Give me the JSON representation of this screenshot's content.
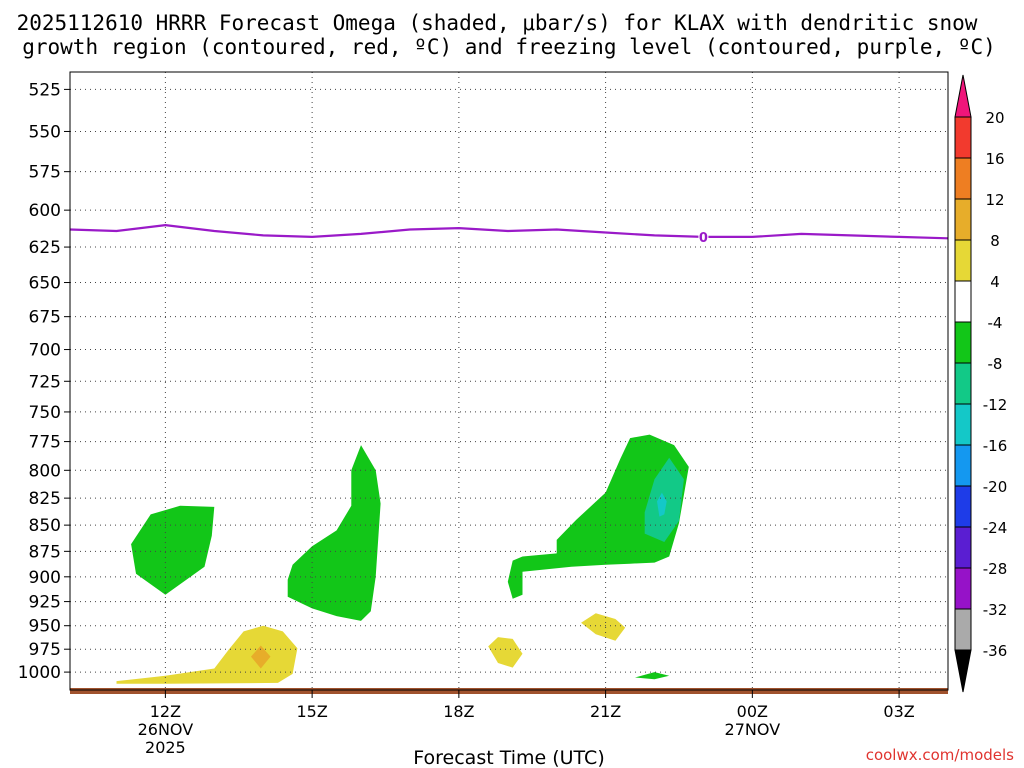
{
  "chart_data": {
    "type": "contour",
    "title_line1": "2025112610 HRRR Forecast Omega (shaded, μbar/s) for KLAX with dendritic snow",
    "title_line2": "growth region (contoured, red, ºC) and freezing level (contoured, purple, ºC)",
    "xlabel": "Forecast Time (UTC)",
    "ylabel": "",
    "credit": "coolwx.com/models",
    "x_hours_from_12Z": [
      -1.95,
      16.0
    ],
    "y_pressure_hpa": [
      515,
      1020
    ],
    "y_ticks": [
      525,
      550,
      575,
      600,
      625,
      650,
      675,
      700,
      725,
      750,
      775,
      800,
      825,
      850,
      875,
      900,
      925,
      950,
      975,
      1000
    ],
    "x_ticks": [
      {
        "hour": 0,
        "label": "12Z",
        "sub1": "26NOV",
        "sub2": "2025"
      },
      {
        "hour": 3,
        "label": "15Z",
        "sub1": "",
        "sub2": ""
      },
      {
        "hour": 6,
        "label": "18Z",
        "sub1": "",
        "sub2": ""
      },
      {
        "hour": 9,
        "label": "21Z",
        "sub1": "",
        "sub2": ""
      },
      {
        "hour": 12,
        "label": "00Z",
        "sub1": "27NOV",
        "sub2": ""
      },
      {
        "hour": 15,
        "label": "03Z",
        "sub1": "",
        "sub2": ""
      }
    ],
    "colorbar": {
      "labels": [
        "20",
        "16",
        "12",
        "8",
        "4",
        "-4",
        "-8",
        "-12",
        "-16",
        "-20",
        "-24",
        "-28",
        "-32",
        "-36"
      ],
      "colors": [
        "#f0157a",
        "#f23a2e",
        "#ee7e22",
        "#e7ad2a",
        "#e6d836",
        "#ffffff",
        "#12c618",
        "#12c987",
        "#14c8c8",
        "#1498f0",
        "#1e3ce8",
        "#5a1ed2",
        "#9612c8",
        "#aaaaaa",
        "#000000"
      ]
    },
    "freezing_level": {
      "color": "#9a1ac8",
      "label": "0",
      "label_hour": 11.0,
      "hours": [
        -1.95,
        -1.0,
        0.0,
        1.0,
        2.0,
        3.0,
        4.0,
        5.0,
        6.0,
        7.0,
        8.0,
        9.0,
        10.0,
        11.0,
        12.0,
        13.0,
        14.0,
        15.0,
        16.0
      ],
      "pressure_hpa": [
        613,
        614,
        610,
        614,
        617,
        618,
        616,
        613,
        612,
        614,
        613,
        615,
        617,
        618,
        618,
        616,
        617,
        618,
        619
      ]
    },
    "omega_regions": [
      {
        "name": "omega-lt-4-west-a",
        "value_range": "-8 to -4",
        "color": "#12c618",
        "points": [
          [
            -0.7,
            868
          ],
          [
            -0.3,
            840
          ],
          [
            0.3,
            832
          ],
          [
            1.0,
            833
          ],
          [
            0.95,
            860
          ],
          [
            0.8,
            890
          ],
          [
            0.0,
            918
          ],
          [
            -0.6,
            897
          ]
        ]
      },
      {
        "name": "omega-lt-4-west-b",
        "value_range": "-8 to -4",
        "color": "#12c618",
        "points": [
          [
            2.5,
            903
          ],
          [
            2.6,
            888
          ],
          [
            3.0,
            870
          ],
          [
            3.5,
            855
          ],
          [
            3.8,
            832
          ],
          [
            3.8,
            800
          ],
          [
            4.0,
            778
          ],
          [
            4.3,
            800
          ],
          [
            4.4,
            830
          ],
          [
            4.3,
            900
          ],
          [
            4.2,
            935
          ],
          [
            4.0,
            945
          ],
          [
            3.5,
            940
          ],
          [
            3.0,
            932
          ],
          [
            2.5,
            920
          ]
        ]
      },
      {
        "name": "omega-lt-4-east",
        "value_range": "-8 to -4",
        "color": "#12c618",
        "points": [
          [
            7.0,
            905
          ],
          [
            7.1,
            884
          ],
          [
            7.3,
            880
          ],
          [
            8.0,
            877
          ],
          [
            8.0,
            864
          ],
          [
            8.4,
            845
          ],
          [
            9.0,
            820
          ],
          [
            9.3,
            790
          ],
          [
            9.5,
            772
          ],
          [
            9.9,
            769
          ],
          [
            10.4,
            778
          ],
          [
            10.7,
            797
          ],
          [
            10.5,
            848
          ],
          [
            10.3,
            880
          ],
          [
            10.0,
            886
          ],
          [
            9.5,
            887
          ],
          [
            9.0,
            888
          ],
          [
            8.3,
            890
          ],
          [
            7.3,
            895
          ],
          [
            7.3,
            918
          ],
          [
            7.1,
            922
          ]
        ]
      },
      {
        "name": "omega-lt-8-core",
        "value_range": "-12 to -8",
        "color": "#12c987",
        "points": [
          [
            9.8,
            838
          ],
          [
            10.0,
            808
          ],
          [
            10.3,
            789
          ],
          [
            10.6,
            808
          ],
          [
            10.5,
            846
          ],
          [
            10.2,
            866
          ],
          [
            9.8,
            858
          ]
        ]
      },
      {
        "name": "omega-lt-12-core",
        "value_range": "-16 to -12",
        "color": "#14c8c8",
        "points": [
          [
            10.05,
            828
          ],
          [
            10.15,
            820
          ],
          [
            10.25,
            828
          ],
          [
            10.2,
            840
          ],
          [
            10.1,
            842
          ]
        ]
      },
      {
        "name": "omega-lt-4-surface",
        "value_range": "-8 to -4",
        "color": "#12c618",
        "points": [
          [
            9.6,
            1006
          ],
          [
            10.0,
            1000
          ],
          [
            10.3,
            1004
          ],
          [
            10.0,
            1008
          ]
        ]
      },
      {
        "name": "omega-gt-4-surface-band",
        "value_range": "4 to 8",
        "color": "#e6d836",
        "points": [
          [
            -1.0,
            1010
          ],
          [
            0.0,
            1004
          ],
          [
            1.0,
            996
          ],
          [
            1.3,
            975
          ],
          [
            1.6,
            956
          ],
          [
            2.0,
            950
          ],
          [
            2.4,
            956
          ],
          [
            2.7,
            974
          ],
          [
            2.6,
            1002
          ],
          [
            2.3,
            1012
          ],
          [
            0.0,
            1013
          ],
          [
            -1.0,
            1013
          ]
        ]
      },
      {
        "name": "omega-gt-8-core",
        "value_range": "8 to 12",
        "color": "#e7ad2a",
        "points": [
          [
            1.75,
            983
          ],
          [
            1.95,
            971
          ],
          [
            2.15,
            983
          ],
          [
            1.95,
            996
          ]
        ]
      },
      {
        "name": "omega-gt-4-mid",
        "value_range": "4 to 8",
        "color": "#e6d836",
        "points": [
          [
            6.6,
            972
          ],
          [
            6.8,
            962
          ],
          [
            7.1,
            964
          ],
          [
            7.3,
            980
          ],
          [
            7.1,
            995
          ],
          [
            6.8,
            990
          ]
        ]
      },
      {
        "name": "omega-gt-4-east",
        "value_range": "4 to 8",
        "color": "#e6d836",
        "points": [
          [
            8.5,
            947
          ],
          [
            8.8,
            937
          ],
          [
            9.2,
            943
          ],
          [
            9.4,
            952
          ],
          [
            9.2,
            966
          ],
          [
            8.8,
            959
          ]
        ]
      }
    ],
    "surface_bar_color": "#a0522d"
  }
}
